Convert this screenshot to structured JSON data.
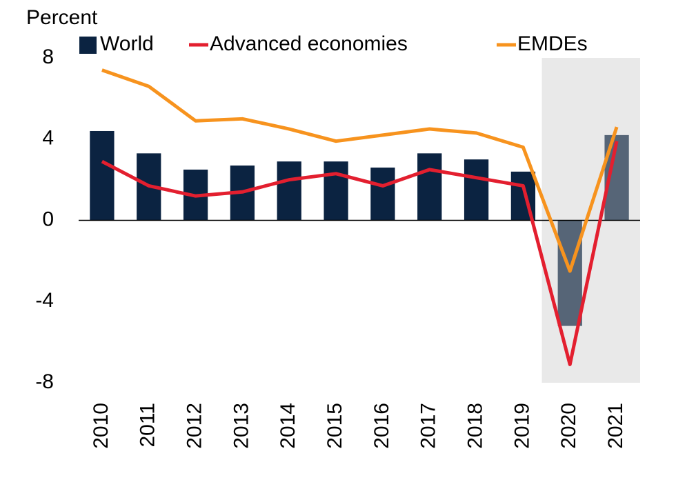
{
  "chart_data": {
    "type": "bar_line",
    "y_label": "Percent",
    "categories": [
      "2010",
      "2011",
      "2012",
      "2013",
      "2014",
      "2015",
      "2016",
      "2017",
      "2018",
      "2019",
      "2020",
      "2021"
    ],
    "series": [
      {
        "name": "World",
        "type": "bar",
        "color": "#0b2341",
        "values": [
          4.4,
          3.3,
          2.5,
          2.7,
          2.9,
          2.9,
          2.6,
          3.3,
          3.0,
          2.4,
          -5.2,
          4.2
        ]
      },
      {
        "name": "Advanced economies",
        "type": "line",
        "color": "#e31f2f",
        "values": [
          2.9,
          1.7,
          1.2,
          1.4,
          2.0,
          2.3,
          1.7,
          2.5,
          2.1,
          1.7,
          -7.1,
          3.9
        ]
      },
      {
        "name": "EMDEs",
        "type": "line",
        "color": "#f7931e",
        "values": [
          7.4,
          6.6,
          4.9,
          5.0,
          4.5,
          3.9,
          4.2,
          4.5,
          4.3,
          3.6,
          -2.5,
          4.6
        ]
      }
    ],
    "shaded_categories": [
      "2020",
      "2021"
    ],
    "ylim": [
      -8,
      8
    ],
    "yticks": [
      -8,
      -4,
      0,
      4,
      8
    ]
  }
}
